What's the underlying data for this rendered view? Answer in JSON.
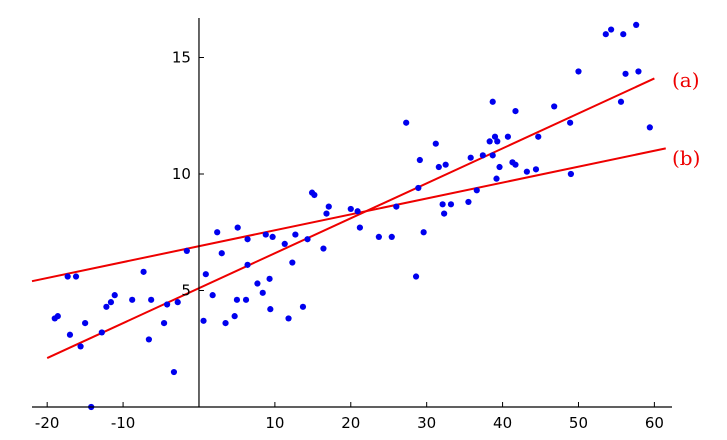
{
  "chart_data": {
    "type": "scatter",
    "title": "",
    "xlabel": "",
    "ylabel": "",
    "xlim": [
      -22,
      61.5
    ],
    "ylim": [
      0,
      16.8
    ],
    "x_ticks": [
      -20,
      -10,
      10,
      20,
      30,
      40,
      50,
      60
    ],
    "x_tick_labels": [
      "-20",
      "-10",
      "10",
      "20",
      "30",
      "40",
      "50",
      "60"
    ],
    "y_ticks": [
      5,
      10,
      15
    ],
    "y_tick_labels": [
      "5",
      "10",
      "15"
    ],
    "grid": false,
    "legend": "none",
    "colors": {
      "points": "#0000ee",
      "lines": "#ee0000",
      "axes": "#000000"
    },
    "series": [
      {
        "type": "scatter",
        "points": [
          [
            -19,
            3.8
          ],
          [
            -18.6,
            3.9
          ],
          [
            -17.3,
            5.6
          ],
          [
            -17,
            3.1
          ],
          [
            -16.2,
            5.6
          ],
          [
            -15.6,
            2.6
          ],
          [
            -15,
            3.6
          ],
          [
            -14.2,
            0
          ],
          [
            -12.8,
            3.2
          ],
          [
            -12.2,
            4.3
          ],
          [
            -11.6,
            4.5
          ],
          [
            -11.1,
            4.8
          ],
          [
            -8.8,
            4.6
          ],
          [
            -7.3,
            5.8
          ],
          [
            -6.6,
            2.9
          ],
          [
            -6.3,
            4.6
          ],
          [
            -4.6,
            3.6
          ],
          [
            -4.2,
            4.4
          ],
          [
            -3.3,
            1.5
          ],
          [
            -2.8,
            4.5
          ],
          [
            -1.6,
            6.7
          ],
          [
            0.6,
            3.7
          ],
          [
            0.9,
            5.7
          ],
          [
            1.8,
            4.8
          ],
          [
            2.4,
            7.5
          ],
          [
            3,
            6.6
          ],
          [
            3.5,
            3.6
          ],
          [
            4.7,
            3.9
          ],
          [
            5,
            4.6
          ],
          [
            5.1,
            7.7
          ],
          [
            6.2,
            4.6
          ],
          [
            6.4,
            7.2
          ],
          [
            6.4,
            6.1
          ],
          [
            7.7,
            5.3
          ],
          [
            8.4,
            4.9
          ],
          [
            8.8,
            7.4
          ],
          [
            9.3,
            5.5
          ],
          [
            9.4,
            4.2
          ],
          [
            9.7,
            7.3
          ],
          [
            11.3,
            7
          ],
          [
            11.8,
            3.8
          ],
          [
            12.3,
            6.2
          ],
          [
            12.7,
            7.4
          ],
          [
            13.7,
            4.3
          ],
          [
            14.3,
            7.2
          ],
          [
            14.9,
            9.2
          ],
          [
            15.2,
            9.1
          ],
          [
            16.4,
            6.8
          ],
          [
            16.8,
            8.3
          ],
          [
            17.1,
            8.6
          ],
          [
            20,
            8.5
          ],
          [
            20.9,
            8.4
          ],
          [
            21.2,
            7.7
          ],
          [
            23.7,
            7.3
          ],
          [
            25.4,
            7.3
          ],
          [
            26,
            8.6
          ],
          [
            27.3,
            12.2
          ],
          [
            28.6,
            5.6
          ],
          [
            28.9,
            9.4
          ],
          [
            29.1,
            10.6
          ],
          [
            29.6,
            7.5
          ],
          [
            31.2,
            11.3
          ],
          [
            31.6,
            10.3
          ],
          [
            32.1,
            8.7
          ],
          [
            32.3,
            8.3
          ],
          [
            32.5,
            10.4
          ],
          [
            33.2,
            8.7
          ],
          [
            35.5,
            8.8
          ],
          [
            35.8,
            10.7
          ],
          [
            36.6,
            9.3
          ],
          [
            37.4,
            10.8
          ],
          [
            38.3,
            11.4
          ],
          [
            38.7,
            13.1
          ],
          [
            38.7,
            10.8
          ],
          [
            39,
            11.6
          ],
          [
            39.2,
            9.8
          ],
          [
            39.3,
            11.4
          ],
          [
            39.6,
            10.3
          ],
          [
            40.7,
            11.6
          ],
          [
            41.3,
            10.5
          ],
          [
            41.7,
            10.4
          ],
          [
            41.7,
            12.7
          ],
          [
            43.2,
            10.1
          ],
          [
            44.4,
            10.2
          ],
          [
            44.7,
            11.6
          ],
          [
            46.8,
            12.9
          ],
          [
            48.9,
            12.2
          ],
          [
            49,
            10
          ],
          [
            50,
            14.4
          ],
          [
            53.6,
            16
          ],
          [
            54.3,
            16.2
          ],
          [
            55.6,
            13.1
          ],
          [
            55.9,
            16
          ],
          [
            56.2,
            14.3
          ],
          [
            57.6,
            16.4
          ],
          [
            57.9,
            14.4
          ],
          [
            59.4,
            12
          ]
        ]
      }
    ],
    "lines": [
      {
        "label": "(a)",
        "x0": -20,
        "y0": 2.1,
        "x1": 60,
        "y1": 14.1
      },
      {
        "label": "(b)",
        "x0": -22,
        "y0": 5.4,
        "x1": 61.5,
        "y1": 11.1
      }
    ]
  }
}
